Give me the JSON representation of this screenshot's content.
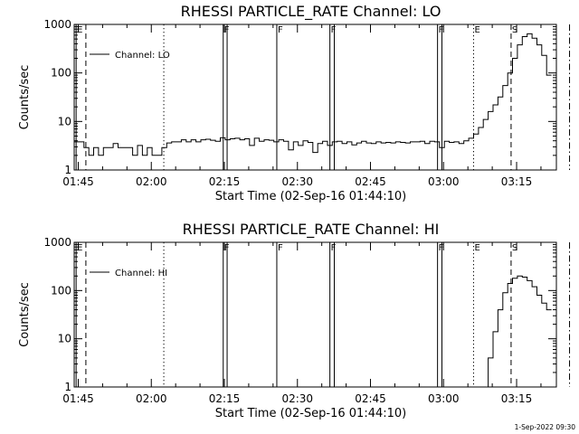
{
  "chart_data": [
    {
      "type": "line",
      "title": "RHESSI PARTICLE_RATE Channel: LO",
      "xlabel": "Start Time (02-Sep-16 01:44:10)",
      "ylabel": "Counts/sec",
      "x_unit": "minutes since 01:44:10",
      "xlim": [
        0,
        99
      ],
      "ylim": [
        1,
        1000
      ],
      "y_scale": "log",
      "x_ticks": [
        "01:45",
        "02:00",
        "02:15",
        "02:30",
        "02:45",
        "03:00",
        "03:15"
      ],
      "y_ticks": [
        "1",
        "10",
        "100",
        "1000"
      ],
      "legend": {
        "position": "top-left",
        "entries": [
          "Channel: LO"
        ]
      },
      "series": [
        {
          "name": "Channel: LO",
          "x": [
            0,
            2,
            3,
            4,
            5,
            6,
            7,
            8,
            9,
            10,
            11,
            12,
            13,
            14,
            15,
            16,
            17,
            18,
            19,
            20,
            21,
            22,
            23,
            24,
            25,
            26,
            27,
            28,
            29,
            30,
            31,
            32,
            33,
            34,
            35,
            36,
            37,
            38,
            39,
            40,
            41,
            42,
            43,
            44,
            45,
            46,
            47,
            48,
            49,
            50,
            51,
            52,
            53,
            54,
            55,
            56,
            57,
            58,
            59,
            60,
            61,
            62,
            63,
            64,
            65,
            66,
            67,
            68,
            69,
            70,
            71,
            72,
            73,
            74,
            75,
            76,
            77,
            78,
            79,
            80,
            81,
            82,
            83,
            84,
            85,
            86,
            87,
            88,
            89,
            90,
            91,
            92,
            93,
            94,
            95,
            96,
            97
          ],
          "y": [
            3.8,
            2.9,
            2,
            2.9,
            2,
            2.9,
            2.9,
            3.5,
            2.9,
            2.9,
            2.9,
            2,
            3.2,
            2,
            2.9,
            2,
            2,
            2.9,
            3.6,
            3.8,
            3.8,
            4.2,
            3.8,
            4.2,
            3.8,
            4.2,
            4.3,
            4.1,
            3.9,
            4.6,
            4.2,
            4.4,
            4.5,
            4.2,
            4.4,
            3.2,
            4.5,
            3.9,
            4.2,
            4.1,
            3.8,
            4.2,
            3.9,
            2.6,
            3.8,
            3.2,
            4,
            3.7,
            2.3,
            3.5,
            3.9,
            3.2,
            3.8,
            3.9,
            3.5,
            3.8,
            3.3,
            3.6,
            3.9,
            3.6,
            3.5,
            3.8,
            3.6,
            3.7,
            3.6,
            3.8,
            3.7,
            3.6,
            3.8,
            3.8,
            3.9,
            3.5,
            3.9,
            3.8,
            2.9,
            3.9,
            3.7,
            3.8,
            3.5,
            4,
            4.5,
            5.5,
            7.5,
            11,
            16,
            22,
            32,
            55,
            100,
            200,
            380,
            560,
            640,
            520,
            380,
            230,
            90
          ]
        }
      ],
      "vertical_markers": [
        {
          "x": 0.4,
          "style": "solid",
          "label": "E"
        },
        {
          "x": 2.4,
          "style": "dashed",
          "label": ""
        },
        {
          "x": 18.4,
          "style": "dotted",
          "label": ""
        },
        {
          "x": 30.6,
          "style": "solid",
          "label": "F"
        },
        {
          "x": 31.4,
          "style": "solid",
          "label": ""
        },
        {
          "x": 41.6,
          "style": "solid",
          "label": "F"
        },
        {
          "x": 52.5,
          "style": "solid",
          "label": "F"
        },
        {
          "x": 53.4,
          "style": "solid",
          "label": ""
        },
        {
          "x": 74.6,
          "style": "solid",
          "label": "F"
        },
        {
          "x": 75.5,
          "style": "solid",
          "label": ""
        },
        {
          "x": 82.0,
          "style": "dotted",
          "label": "E"
        },
        {
          "x": 89.7,
          "style": "dashed",
          "label": "S"
        },
        {
          "x": 101.7,
          "style": "dashdot",
          "label": ""
        }
      ]
    },
    {
      "type": "line",
      "title": "RHESSI PARTICLE_RATE Channel: HI",
      "xlabel": "Start Time (02-Sep-16 01:44:10)",
      "ylabel": "Counts/sec",
      "x_unit": "minutes since 01:44:10",
      "xlim": [
        0,
        99
      ],
      "ylim": [
        1,
        1000
      ],
      "y_scale": "log",
      "x_ticks": [
        "01:45",
        "02:00",
        "02:15",
        "02:30",
        "02:45",
        "03:00",
        "03:15"
      ],
      "y_ticks": [
        "1",
        "10",
        "100",
        "1000"
      ],
      "legend": {
        "position": "top-left",
        "entries": [
          "Channel: HI"
        ]
      },
      "series": [
        {
          "name": "Channel: HI",
          "x": [
            84,
            85,
            86,
            87,
            88,
            89,
            90,
            91,
            92,
            93,
            94,
            95,
            96,
            97
          ],
          "y": [
            1,
            4,
            14,
            40,
            90,
            140,
            180,
            200,
            190,
            160,
            120,
            80,
            55,
            40
          ]
        }
      ],
      "vertical_markers": [
        {
          "x": 0.4,
          "style": "solid",
          "label": "E"
        },
        {
          "x": 2.4,
          "style": "dashed",
          "label": ""
        },
        {
          "x": 18.4,
          "style": "dotted",
          "label": ""
        },
        {
          "x": 30.6,
          "style": "solid",
          "label": "F"
        },
        {
          "x": 31.4,
          "style": "solid",
          "label": ""
        },
        {
          "x": 41.6,
          "style": "solid",
          "label": "F"
        },
        {
          "x": 52.5,
          "style": "solid",
          "label": "F"
        },
        {
          "x": 53.4,
          "style": "solid",
          "label": ""
        },
        {
          "x": 74.6,
          "style": "solid",
          "label": "F"
        },
        {
          "x": 75.5,
          "style": "solid",
          "label": ""
        },
        {
          "x": 82.0,
          "style": "dotted",
          "label": "E"
        },
        {
          "x": 89.7,
          "style": "dashed",
          "label": "S"
        },
        {
          "x": 101.7,
          "style": "dashdot",
          "label": ""
        }
      ]
    }
  ],
  "footer": {
    "stamp": "1-Sep-2022 09:30"
  }
}
